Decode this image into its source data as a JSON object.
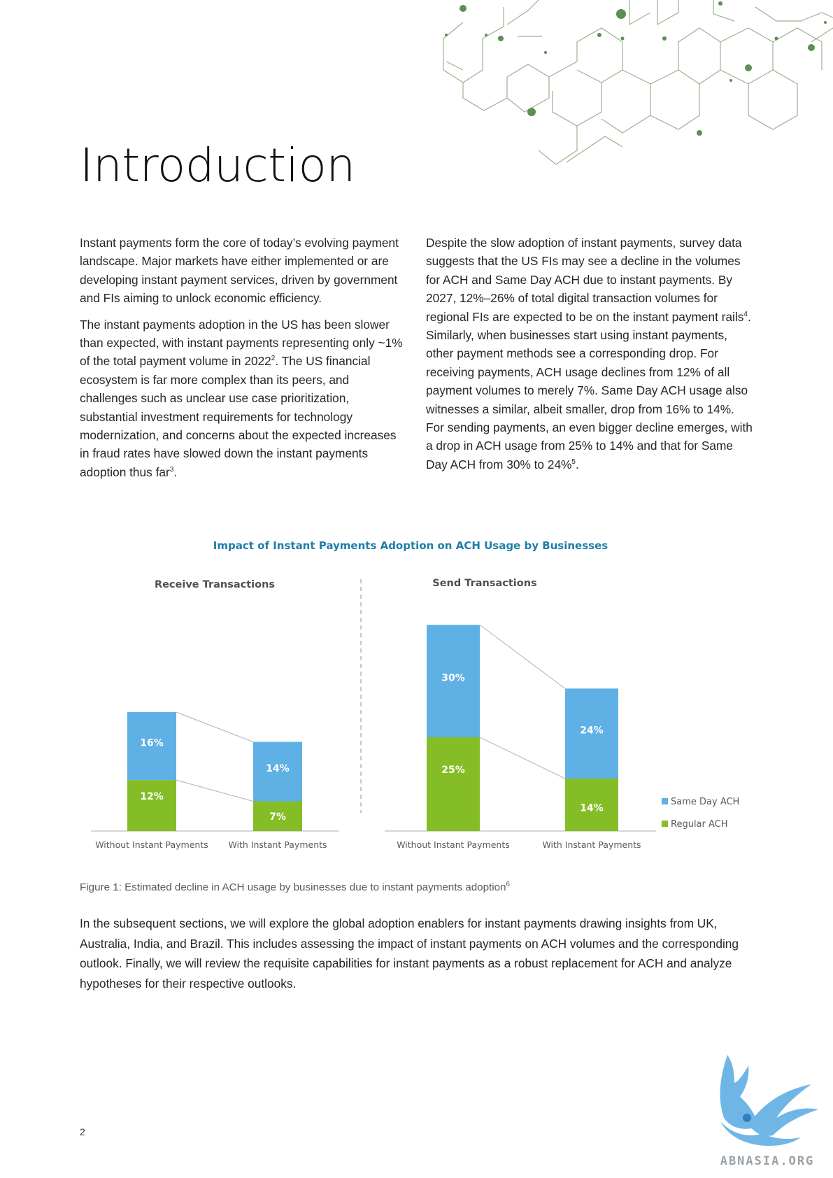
{
  "page": {
    "title": "Introduction",
    "page_number": "2",
    "logo_text": "ABNASIA.ORG"
  },
  "body": {
    "left_col": {
      "p1": "Instant payments form the core of today’s evolving payment landscape. Major markets have either implemented or are developing instant payment services, driven by government and FIs aiming to unlock economic efficiency.",
      "p2_a": "The instant payments adoption in the US has been slower than expected, with instant payments representing only ~1% of the total payment volume in 2022",
      "p2_ref1": "2",
      "p2_b": ". The US financial ecosystem is far more complex than its peers, and challenges such as unclear use case prioritization, substantial investment requirements for technology modernization, and concerns about the expected increases in fraud rates have slowed down the instant payments adoption thus far",
      "p2_ref2": "3",
      "p2_c": "."
    },
    "right_col": {
      "p_a": "Despite the slow adoption of instant payments, survey data suggests that the US FIs may see a decline in the volumes for ACH and Same Day ACH due to instant payments. By 2027, 12%–26% of total digital transaction volumes for regional FIs are expected to be on the instant payment rails",
      "p_ref1": "4",
      "p_b": ". Similarly, when businesses start using instant payments, other payment methods see a corresponding drop. For receiving payments, ACH usage declines from 12% of all payment volumes to merely 7%. Same Day ACH usage also witnesses a similar, albeit smaller, drop from 16% to 14%. For sending payments, an even bigger decline emerges, with a drop in ACH usage from 25% to 14% and that for Same Day ACH from 30% to 24%",
      "p_ref2": "5",
      "p_c": "."
    },
    "caption": "Figure 1: Estimated decline in ACH usage by businesses due to instant payments adoption",
    "caption_ref": "6",
    "closing": "In the subsequent sections, we will explore the global adoption enablers for instant payments drawing insights from UK, Australia, India, and Brazil. This includes assessing the impact of instant payments on ACH volumes and the corresponding outlook. Finally, we will review the requisite capabilities for instant payments as a robust replacement for ACH and analyze hypotheses for their respective outlooks."
  },
  "chart_data": {
    "type": "bar",
    "stacked": true,
    "title": "Impact of Instant Payments Adoption on ACH Usage by Businesses",
    "legend_position": "bottom-right",
    "colors": {
      "Same Day ACH": "#5eb0e5",
      "Regular ACH": "#84bd25",
      "title": "#1f7ea8"
    },
    "panels": [
      {
        "title": "Receive Transactions",
        "categories": [
          "Without Instant Payments",
          "With Instant Payments"
        ],
        "series": [
          {
            "name": "Regular ACH",
            "values": [
              12,
              7
            ],
            "labels": [
              "12%",
              "7%"
            ]
          },
          {
            "name": "Same Day ACH",
            "values": [
              16,
              14
            ],
            "labels": [
              "16%",
              "14%"
            ]
          }
        ]
      },
      {
        "title": "Send Transactions",
        "categories": [
          "Without Instant Payments",
          "With Instant Payments"
        ],
        "series": [
          {
            "name": "Regular ACH",
            "values": [
              25,
              14
            ],
            "labels": [
              "25%",
              "14%"
            ]
          },
          {
            "name": "Same Day ACH",
            "values": [
              30,
              24
            ],
            "labels": [
              "30%",
              "24%"
            ]
          }
        ]
      }
    ],
    "legend": [
      "Same Day ACH",
      "Regular ACH"
    ]
  }
}
